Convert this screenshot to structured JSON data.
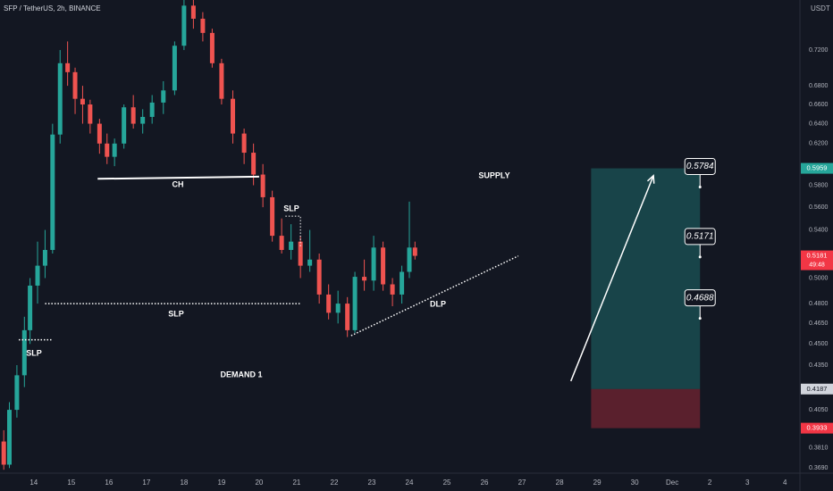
{
  "header": {
    "symbol": "SFP / TetherUS, 2h, BINANCE",
    "currency": "USDT"
  },
  "chart_data": {
    "type": "candlestick",
    "log_scale": true,
    "grid": true,
    "xlim": [
      13.1,
      34.4
    ],
    "ylim": [
      0.366,
      0.78
    ],
    "xticks": [
      14,
      15,
      16,
      17,
      18,
      19,
      20,
      21,
      22,
      23,
      24,
      25,
      26,
      27,
      28,
      29,
      30,
      {
        "value": 31,
        "label": "Dec"
      },
      {
        "value": 32,
        "label": "2"
      },
      {
        "value": 33,
        "label": "3"
      },
      {
        "value": 34,
        "label": "4"
      }
    ],
    "yticks": [
      {
        "value": 0.72,
        "label": "0.7200"
      },
      {
        "value": 0.68,
        "label": "0.6800"
      },
      {
        "value": 0.66,
        "label": "0.6600"
      },
      {
        "value": 0.64,
        "label": "0.6400"
      },
      {
        "value": 0.62,
        "label": "0.6200"
      },
      {
        "value": 0.58,
        "label": "0.5800"
      },
      {
        "value": 0.56,
        "label": "0.5600"
      },
      {
        "value": 0.54,
        "label": "0.5400"
      },
      {
        "value": 0.5,
        "label": "0.5000"
      },
      {
        "value": 0.48,
        "label": "0.4800"
      },
      {
        "value": 0.465,
        "label": "0.4650"
      },
      {
        "value": 0.45,
        "label": "0.4500"
      },
      {
        "value": 0.435,
        "label": "0.4350"
      },
      {
        "value": 0.405,
        "label": "0.4050"
      },
      {
        "value": 0.381,
        "label": "0.3810"
      },
      {
        "value": 0.369,
        "label": "0.3690"
      }
    ],
    "up_color": "#26a69a",
    "down_color": "#ef5350",
    "x": [
      13.2,
      13.35,
      13.55,
      13.75,
      13.9,
      14.1,
      14.3,
      14.5,
      14.7,
      14.9,
      15.1,
      15.3,
      15.5,
      15.75,
      15.95,
      16.15,
      16.4,
      16.65,
      16.9,
      17.15,
      17.45,
      17.75,
      18.0,
      18.25,
      18.5,
      18.75,
      19.0,
      19.3,
      19.6,
      19.85,
      20.1,
      20.35,
      20.6,
      20.85,
      21.1,
      21.35,
      21.6,
      21.85,
      22.1,
      22.35,
      22.55,
      22.8,
      23.05,
      23.3,
      23.55,
      23.8,
      24.0,
      24.15
    ],
    "open": [
      0.385,
      0.371,
      0.405,
      0.428,
      0.46,
      0.494,
      0.51,
      0.523,
      0.629,
      0.705,
      0.695,
      0.666,
      0.66,
      0.64,
      0.62,
      0.607,
      0.62,
      0.657,
      0.64,
      0.647,
      0.662,
      0.675,
      0.725,
      0.773,
      0.757,
      0.74,
      0.705,
      0.666,
      0.63,
      0.611,
      0.59,
      0.569,
      0.535,
      0.523,
      0.53,
      0.51,
      0.515,
      0.487,
      0.473,
      0.48,
      0.46,
      0.501,
      0.498,
      0.525,
      0.495,
      0.487,
      0.505,
      0.525
    ],
    "high": [
      0.392,
      0.41,
      0.435,
      0.47,
      0.5,
      0.53,
      0.54,
      0.64,
      0.72,
      0.73,
      0.7,
      0.68,
      0.665,
      0.645,
      0.63,
      0.625,
      0.66,
      0.67,
      0.655,
      0.67,
      0.685,
      0.73,
      0.78,
      0.78,
      0.765,
      0.745,
      0.71,
      0.675,
      0.635,
      0.62,
      0.6,
      0.575,
      0.55,
      0.545,
      0.535,
      0.54,
      0.52,
      0.495,
      0.49,
      0.485,
      0.505,
      0.515,
      0.535,
      0.53,
      0.5,
      0.51,
      0.565,
      0.53
    ],
    "low": [
      0.368,
      0.369,
      0.4,
      0.42,
      0.45,
      0.48,
      0.5,
      0.52,
      0.62,
      0.68,
      0.65,
      0.64,
      0.63,
      0.61,
      0.6,
      0.598,
      0.615,
      0.635,
      0.63,
      0.64,
      0.65,
      0.67,
      0.72,
      0.745,
      0.73,
      0.7,
      0.66,
      0.62,
      0.6,
      0.58,
      0.56,
      0.53,
      0.52,
      0.515,
      0.5,
      0.505,
      0.48,
      0.468,
      0.465,
      0.455,
      0.458,
      0.49,
      0.49,
      0.49,
      0.478,
      0.48,
      0.5,
      0.515
    ],
    "close": [
      0.371,
      0.405,
      0.428,
      0.46,
      0.494,
      0.51,
      0.523,
      0.629,
      0.705,
      0.695,
      0.666,
      0.66,
      0.64,
      0.62,
      0.607,
      0.62,
      0.657,
      0.64,
      0.647,
      0.662,
      0.675,
      0.725,
      0.773,
      0.757,
      0.74,
      0.705,
      0.666,
      0.63,
      0.611,
      0.59,
      0.569,
      0.535,
      0.523,
      0.53,
      0.51,
      0.515,
      0.487,
      0.473,
      0.48,
      0.46,
      0.501,
      0.498,
      0.525,
      0.495,
      0.487,
      0.505,
      0.525,
      0.5181
    ],
    "zones": [
      {
        "label": "SUPPLY",
        "top": 0.5959,
        "bottom": 0.5784,
        "start": 20.0,
        "color": "#f23645"
      },
      {
        "label": "DEMAND 1",
        "top": 0.4385,
        "bottom": 0.4187,
        "start": 13.58,
        "color": "#4caf50"
      }
    ],
    "lines": [
      {
        "label": "CH",
        "x": [
          15.7,
          20.0
        ],
        "y": [
          0.586,
          0.588
        ],
        "style": "solid"
      },
      {
        "label": "SLP",
        "x": [
          14.3,
          21.1
        ],
        "y": [
          0.48,
          0.48
        ],
        "style": "dotted"
      },
      {
        "label": "SLP",
        "x": [
          13.6,
          14.5
        ],
        "y": [
          0.453,
          0.453
        ],
        "style": "dotted"
      },
      {
        "label": "DLP",
        "x": [
          22.45,
          26.9
        ],
        "y": [
          0.456,
          0.518
        ],
        "style": "dotted"
      }
    ],
    "slp_box": {
      "label": "SLP",
      "x": [
        20.7,
        21.1
      ],
      "y": [
        0.552,
        0.525
      ]
    },
    "arrow": {
      "x": [
        28.3,
        30.5
      ],
      "y": [
        0.424,
        0.589
      ]
    },
    "position": {
      "start": 28.84,
      "end": 31.74,
      "target": 0.5959,
      "entry": 0.4187,
      "stop": 0.3933
    },
    "callouts": [
      {
        "value": 0.5784,
        "label": "0.5784"
      },
      {
        "value": 0.5171,
        "label": "0.5171"
      },
      {
        "value": 0.4688,
        "label": "0.4688"
      }
    ],
    "callout_x": 31.74,
    "price_tags": [
      {
        "value": 0.5959,
        "label": "0.5959",
        "color": "#26a69a"
      },
      {
        "value": 0.5181,
        "label": "0.5181",
        "color": "#f23645",
        "timer": "49:48"
      },
      {
        "value": 0.4187,
        "label": "0.4187",
        "color": "#d1d4dc"
      },
      {
        "value": 0.3933,
        "label": "0.3933",
        "color": "#f23645"
      }
    ]
  }
}
